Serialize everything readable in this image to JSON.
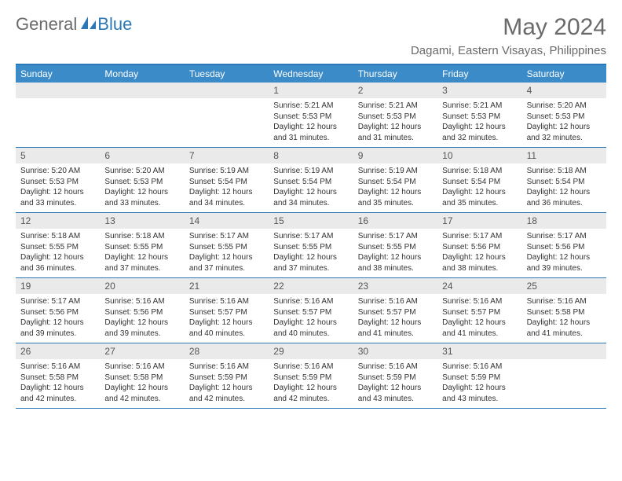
{
  "brand": {
    "general": "General",
    "blue": "Blue"
  },
  "header": {
    "month_title": "May 2024",
    "location": "Dagami, Eastern Visayas, Philippines"
  },
  "colors": {
    "accent": "#3b8bc9",
    "border": "#2a78b8",
    "shade": "#eaeaea",
    "text_muted": "#6a6a6a"
  },
  "day_labels": [
    "Sunday",
    "Monday",
    "Tuesday",
    "Wednesday",
    "Thursday",
    "Friday",
    "Saturday"
  ],
  "weeks": [
    [
      {
        "empty": true
      },
      {
        "empty": true
      },
      {
        "empty": true
      },
      {
        "day": "1",
        "sunrise": "Sunrise: 5:21 AM",
        "sunset": "Sunset: 5:53 PM",
        "daylight1": "Daylight: 12 hours",
        "daylight2": "and 31 minutes."
      },
      {
        "day": "2",
        "sunrise": "Sunrise: 5:21 AM",
        "sunset": "Sunset: 5:53 PM",
        "daylight1": "Daylight: 12 hours",
        "daylight2": "and 31 minutes."
      },
      {
        "day": "3",
        "sunrise": "Sunrise: 5:21 AM",
        "sunset": "Sunset: 5:53 PM",
        "daylight1": "Daylight: 12 hours",
        "daylight2": "and 32 minutes."
      },
      {
        "day": "4",
        "sunrise": "Sunrise: 5:20 AM",
        "sunset": "Sunset: 5:53 PM",
        "daylight1": "Daylight: 12 hours",
        "daylight2": "and 32 minutes."
      }
    ],
    [
      {
        "day": "5",
        "sunrise": "Sunrise: 5:20 AM",
        "sunset": "Sunset: 5:53 PM",
        "daylight1": "Daylight: 12 hours",
        "daylight2": "and 33 minutes."
      },
      {
        "day": "6",
        "sunrise": "Sunrise: 5:20 AM",
        "sunset": "Sunset: 5:53 PM",
        "daylight1": "Daylight: 12 hours",
        "daylight2": "and 33 minutes."
      },
      {
        "day": "7",
        "sunrise": "Sunrise: 5:19 AM",
        "sunset": "Sunset: 5:54 PM",
        "daylight1": "Daylight: 12 hours",
        "daylight2": "and 34 minutes."
      },
      {
        "day": "8",
        "sunrise": "Sunrise: 5:19 AM",
        "sunset": "Sunset: 5:54 PM",
        "daylight1": "Daylight: 12 hours",
        "daylight2": "and 34 minutes."
      },
      {
        "day": "9",
        "sunrise": "Sunrise: 5:19 AM",
        "sunset": "Sunset: 5:54 PM",
        "daylight1": "Daylight: 12 hours",
        "daylight2": "and 35 minutes."
      },
      {
        "day": "10",
        "sunrise": "Sunrise: 5:18 AM",
        "sunset": "Sunset: 5:54 PM",
        "daylight1": "Daylight: 12 hours",
        "daylight2": "and 35 minutes."
      },
      {
        "day": "11",
        "sunrise": "Sunrise: 5:18 AM",
        "sunset": "Sunset: 5:54 PM",
        "daylight1": "Daylight: 12 hours",
        "daylight2": "and 36 minutes."
      }
    ],
    [
      {
        "day": "12",
        "sunrise": "Sunrise: 5:18 AM",
        "sunset": "Sunset: 5:55 PM",
        "daylight1": "Daylight: 12 hours",
        "daylight2": "and 36 minutes."
      },
      {
        "day": "13",
        "sunrise": "Sunrise: 5:18 AM",
        "sunset": "Sunset: 5:55 PM",
        "daylight1": "Daylight: 12 hours",
        "daylight2": "and 37 minutes."
      },
      {
        "day": "14",
        "sunrise": "Sunrise: 5:17 AM",
        "sunset": "Sunset: 5:55 PM",
        "daylight1": "Daylight: 12 hours",
        "daylight2": "and 37 minutes."
      },
      {
        "day": "15",
        "sunrise": "Sunrise: 5:17 AM",
        "sunset": "Sunset: 5:55 PM",
        "daylight1": "Daylight: 12 hours",
        "daylight2": "and 37 minutes."
      },
      {
        "day": "16",
        "sunrise": "Sunrise: 5:17 AM",
        "sunset": "Sunset: 5:55 PM",
        "daylight1": "Daylight: 12 hours",
        "daylight2": "and 38 minutes."
      },
      {
        "day": "17",
        "sunrise": "Sunrise: 5:17 AM",
        "sunset": "Sunset: 5:56 PM",
        "daylight1": "Daylight: 12 hours",
        "daylight2": "and 38 minutes."
      },
      {
        "day": "18",
        "sunrise": "Sunrise: 5:17 AM",
        "sunset": "Sunset: 5:56 PM",
        "daylight1": "Daylight: 12 hours",
        "daylight2": "and 39 minutes."
      }
    ],
    [
      {
        "day": "19",
        "sunrise": "Sunrise: 5:17 AM",
        "sunset": "Sunset: 5:56 PM",
        "daylight1": "Daylight: 12 hours",
        "daylight2": "and 39 minutes."
      },
      {
        "day": "20",
        "sunrise": "Sunrise: 5:16 AM",
        "sunset": "Sunset: 5:56 PM",
        "daylight1": "Daylight: 12 hours",
        "daylight2": "and 39 minutes."
      },
      {
        "day": "21",
        "sunrise": "Sunrise: 5:16 AM",
        "sunset": "Sunset: 5:57 PM",
        "daylight1": "Daylight: 12 hours",
        "daylight2": "and 40 minutes."
      },
      {
        "day": "22",
        "sunrise": "Sunrise: 5:16 AM",
        "sunset": "Sunset: 5:57 PM",
        "daylight1": "Daylight: 12 hours",
        "daylight2": "and 40 minutes."
      },
      {
        "day": "23",
        "sunrise": "Sunrise: 5:16 AM",
        "sunset": "Sunset: 5:57 PM",
        "daylight1": "Daylight: 12 hours",
        "daylight2": "and 41 minutes."
      },
      {
        "day": "24",
        "sunrise": "Sunrise: 5:16 AM",
        "sunset": "Sunset: 5:57 PM",
        "daylight1": "Daylight: 12 hours",
        "daylight2": "and 41 minutes."
      },
      {
        "day": "25",
        "sunrise": "Sunrise: 5:16 AM",
        "sunset": "Sunset: 5:58 PM",
        "daylight1": "Daylight: 12 hours",
        "daylight2": "and 41 minutes."
      }
    ],
    [
      {
        "day": "26",
        "sunrise": "Sunrise: 5:16 AM",
        "sunset": "Sunset: 5:58 PM",
        "daylight1": "Daylight: 12 hours",
        "daylight2": "and 42 minutes."
      },
      {
        "day": "27",
        "sunrise": "Sunrise: 5:16 AM",
        "sunset": "Sunset: 5:58 PM",
        "daylight1": "Daylight: 12 hours",
        "daylight2": "and 42 minutes."
      },
      {
        "day": "28",
        "sunrise": "Sunrise: 5:16 AM",
        "sunset": "Sunset: 5:59 PM",
        "daylight1": "Daylight: 12 hours",
        "daylight2": "and 42 minutes."
      },
      {
        "day": "29",
        "sunrise": "Sunrise: 5:16 AM",
        "sunset": "Sunset: 5:59 PM",
        "daylight1": "Daylight: 12 hours",
        "daylight2": "and 42 minutes."
      },
      {
        "day": "30",
        "sunrise": "Sunrise: 5:16 AM",
        "sunset": "Sunset: 5:59 PM",
        "daylight1": "Daylight: 12 hours",
        "daylight2": "and 43 minutes."
      },
      {
        "day": "31",
        "sunrise": "Sunrise: 5:16 AM",
        "sunset": "Sunset: 5:59 PM",
        "daylight1": "Daylight: 12 hours",
        "daylight2": "and 43 minutes."
      },
      {
        "empty": true
      }
    ]
  ]
}
